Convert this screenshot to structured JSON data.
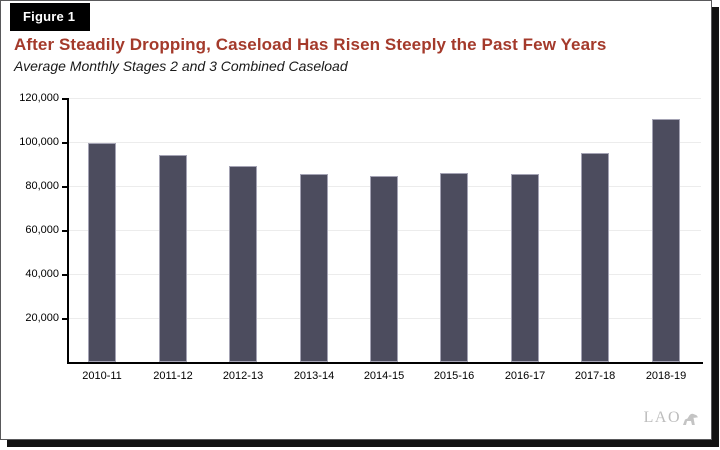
{
  "figure_label": "Figure 1",
  "title": "After Steadily Dropping, Caseload Has Risen Steeply the Past Few Years",
  "subtitle": "Average Monthly Stages 2 and 3 Combined Caseload",
  "logo_text": "LAO",
  "colors": {
    "title_red": "#a43a2b",
    "bar_fill": "#4c4c5e",
    "bar_edge": "#a4a3b4",
    "gridline": "#ececec",
    "axis": "#000000",
    "logo_gray": "#bdbdbd",
    "figure_label_bg": "#000000",
    "figure_label_fg": "#ffffff"
  },
  "chart_data": {
    "type": "bar",
    "title": "After Steadily Dropping, Caseload Has Risen Steeply the Past Few Years",
    "subtitle": "Average Monthly Stages 2 and 3 Combined Caseload",
    "categories": [
      "2010-11",
      "2011-12",
      "2012-13",
      "2013-14",
      "2014-15",
      "2015-16",
      "2016-17",
      "2017-18",
      "2018-19"
    ],
    "values": [
      99500,
      94000,
      89000,
      85600,
      84600,
      85700,
      85400,
      95100,
      110500
    ],
    "xlabel": "",
    "ylabel": "",
    "ylim": [
      0,
      120000
    ],
    "ytick_interval": 20000,
    "ytick_labels": [
      "20,000",
      "40,000",
      "60,000",
      "80,000",
      "100,000",
      "120,000"
    ],
    "grid": "horizontal",
    "legend": "none"
  }
}
